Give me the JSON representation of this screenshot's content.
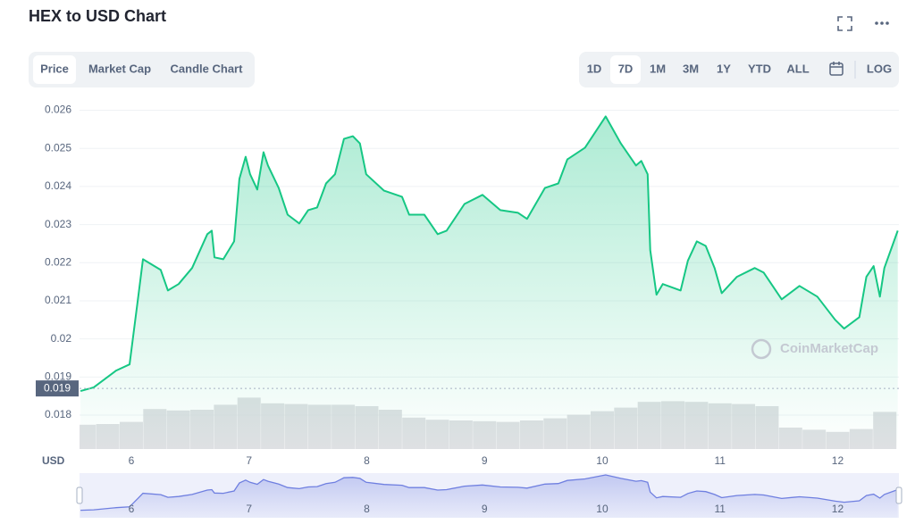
{
  "title": "HEX to USD Chart",
  "controls": {
    "tabs": [
      "Price",
      "Market Cap",
      "Candle Chart"
    ],
    "active_tab": 0,
    "ranges": [
      "1D",
      "7D",
      "1M",
      "3M",
      "1Y",
      "YTD",
      "ALL",
      "LOG"
    ],
    "active_range": 1
  },
  "watermark": "CoinMarketCap",
  "chart_data": {
    "type": "area",
    "y_unit_label": "USD",
    "color": "#16c784",
    "x": [
      5.568,
      5.681,
      5.871,
      5.985,
      6.061,
      6.099,
      6.25,
      6.311,
      6.402,
      6.516,
      6.645,
      6.683,
      6.706,
      6.781,
      6.873,
      6.918,
      6.971,
      7.009,
      7.07,
      7.123,
      7.161,
      7.252,
      7.328,
      7.426,
      7.502,
      7.578,
      7.654,
      7.73,
      7.806,
      7.882,
      7.942,
      7.995,
      8.147,
      8.299,
      8.36,
      8.489,
      8.602,
      8.678,
      8.83,
      8.982,
      9.134,
      9.285,
      9.361,
      9.513,
      9.627,
      9.703,
      9.854,
      10.029,
      10.158,
      10.287,
      10.332,
      10.386,
      10.408,
      10.461,
      10.514,
      10.666,
      10.727,
      10.803,
      10.879,
      10.954,
      11.015,
      11.144,
      11.296,
      11.372,
      11.524,
      11.675,
      11.827,
      11.979,
      12.055,
      12.184,
      12.244,
      12.305,
      12.358,
      12.396,
      12.51
    ],
    "values": [
      0.01863,
      0.01873,
      0.01917,
      0.01933,
      0.02116,
      0.02209,
      0.02181,
      0.02127,
      0.02144,
      0.02186,
      0.02275,
      0.02284,
      0.02214,
      0.02209,
      0.02256,
      0.0242,
      0.02478,
      0.02432,
      0.02392,
      0.0249,
      0.02455,
      0.02396,
      0.02326,
      0.02303,
      0.02338,
      0.02345,
      0.02408,
      0.02432,
      0.02525,
      0.02532,
      0.02513,
      0.02432,
      0.02389,
      0.02373,
      0.02326,
      0.02326,
      0.02275,
      0.02284,
      0.02354,
      0.02378,
      0.02338,
      0.02331,
      0.02315,
      0.02396,
      0.02408,
      0.02471,
      0.02502,
      0.02584,
      0.02513,
      0.02455,
      0.02467,
      0.02432,
      0.02233,
      0.02116,
      0.02144,
      0.02127,
      0.02205,
      0.02256,
      0.02244,
      0.02186,
      0.0212,
      0.02163,
      0.02186,
      0.02174,
      0.02104,
      0.02139,
      0.02111,
      0.0205,
      0.02027,
      0.02057,
      0.02163,
      0.02191,
      0.02111,
      0.02186,
      0.02284
    ],
    "xlim": [
      5.56,
      12.52
    ],
    "xticks": [
      6,
      7,
      8,
      9,
      10,
      11,
      12
    ],
    "ylim": [
      0.01711,
      0.0262
    ],
    "yticks": [
      0.018,
      0.019,
      0.02,
      0.021,
      0.022,
      0.023,
      0.024,
      0.025,
      0.026
    ],
    "reference_line": {
      "value": 0.0187,
      "label": "0.019"
    },
    "volume": {
      "color": "#d3d6da",
      "lim": [
        0,
        100
      ],
      "x": [
        5.6,
        5.8,
        6.0,
        6.2,
        6.4,
        6.6,
        6.8,
        7.0,
        7.2,
        7.4,
        7.6,
        7.8,
        8.0,
        8.2,
        8.4,
        8.6,
        8.8,
        9.0,
        9.2,
        9.4,
        9.6,
        9.8,
        10.0,
        10.2,
        10.4,
        10.6,
        10.8,
        11.0,
        11.2,
        11.4,
        11.6,
        11.8,
        12.0,
        12.2,
        12.4
      ],
      "values": [
        34,
        35,
        38,
        56,
        54,
        55,
        62,
        72,
        64,
        63,
        62,
        62,
        60,
        55,
        44,
        41,
        40,
        39,
        38,
        40,
        43,
        48,
        53,
        58,
        66,
        67,
        66,
        64,
        63,
        60,
        30,
        27,
        24,
        28,
        52
      ]
    },
    "navigator_color": "#6f7fe0"
  }
}
